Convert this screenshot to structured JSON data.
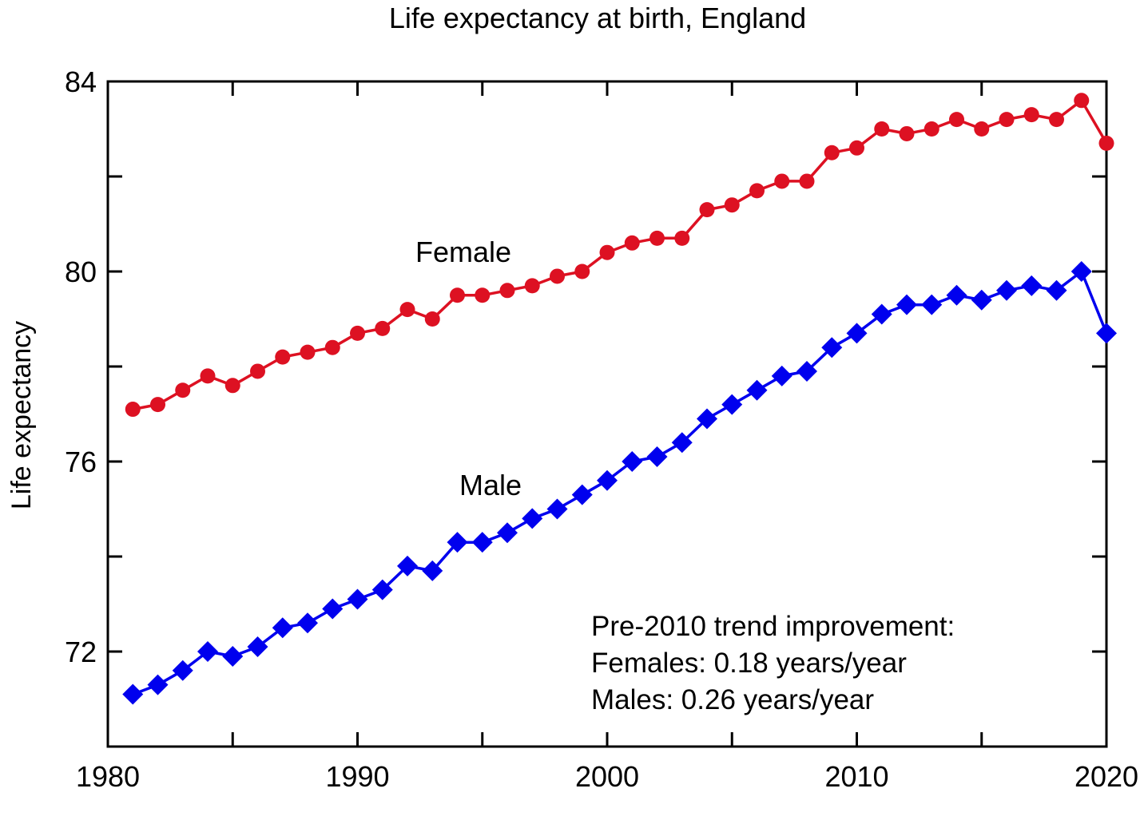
{
  "chart_data": {
    "type": "line",
    "title": "Life expectancy at birth, England",
    "xlabel": "",
    "ylabel": "Life expectancy",
    "xlim": [
      1980,
      2020
    ],
    "ylim": [
      70,
      84
    ],
    "x_ticks": [
      1980,
      1990,
      2000,
      2010,
      2020
    ],
    "y_ticks": [
      72,
      76,
      80,
      84
    ],
    "grid": false,
    "x": [
      1981,
      1982,
      1983,
      1984,
      1985,
      1986,
      1987,
      1988,
      1989,
      1990,
      1991,
      1992,
      1993,
      1994,
      1995,
      1996,
      1997,
      1998,
      1999,
      2000,
      2001,
      2002,
      2003,
      2004,
      2005,
      2006,
      2007,
      2008,
      2009,
      2010,
      2011,
      2012,
      2013,
      2014,
      2015,
      2016,
      2017,
      2018,
      2019,
      2020
    ],
    "series": [
      {
        "name": "Female",
        "color": "#dd1122",
        "marker": "circle",
        "values": [
          77.1,
          77.2,
          77.5,
          77.8,
          77.6,
          77.9,
          78.2,
          78.3,
          78.4,
          78.7,
          78.8,
          79.2,
          79.0,
          79.5,
          79.5,
          79.6,
          79.7,
          79.9,
          80.0,
          80.4,
          80.6,
          80.7,
          80.7,
          81.3,
          81.4,
          81.7,
          81.9,
          81.9,
          82.5,
          82.6,
          83.0,
          82.9,
          83.0,
          83.2,
          83.0,
          83.2,
          83.3,
          83.2,
          83.6,
          82.7
        ]
      },
      {
        "name": "Male",
        "color": "#0000ee",
        "marker": "diamond",
        "values": [
          71.1,
          71.3,
          71.6,
          72.0,
          71.9,
          72.1,
          72.5,
          72.6,
          72.9,
          73.1,
          73.3,
          73.8,
          73.7,
          74.3,
          74.3,
          74.5,
          74.8,
          75.0,
          75.3,
          75.6,
          76.0,
          76.1,
          76.4,
          76.9,
          77.2,
          77.5,
          77.8,
          77.9,
          78.4,
          78.7,
          79.1,
          79.3,
          79.3,
          79.5,
          79.4,
          79.6,
          79.7,
          79.6,
          80.0,
          78.7
        ]
      }
    ],
    "annotation": [
      "Pre-2010 trend improvement:",
      "Females: 0.18 years/year",
      "Males: 0.26 years/year"
    ]
  }
}
